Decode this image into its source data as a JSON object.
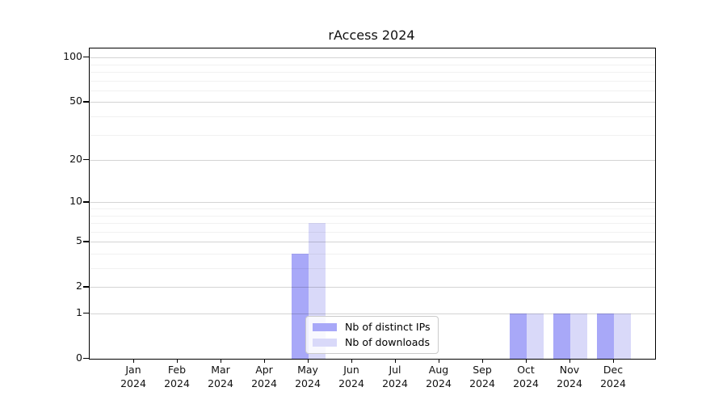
{
  "chart_data": {
    "type": "bar",
    "title": "rAccess 2024",
    "categories": [
      "Jan 2024",
      "Feb 2024",
      "Mar 2024",
      "Apr 2024",
      "May 2024",
      "Jun 2024",
      "Jul 2024",
      "Aug 2024",
      "Sep 2024",
      "Oct 2024",
      "Nov 2024",
      "Dec 2024"
    ],
    "series": [
      {
        "name": "Nb of distinct IPs",
        "color": "#a8a8f8",
        "values": [
          0,
          0,
          0,
          0,
          4,
          0,
          0,
          0,
          0,
          1,
          1,
          1
        ]
      },
      {
        "name": "Nb of downloads",
        "color": "#d9d9f9",
        "values": [
          0,
          0,
          0,
          0,
          7,
          0,
          0,
          0,
          0,
          1,
          1,
          1
        ]
      }
    ],
    "yscale": "log1p",
    "ylim": [
      0,
      115
    ],
    "y_major_ticks": [
      0,
      1,
      2,
      5,
      10,
      20,
      50,
      100
    ],
    "y_minor_ticks": [
      3,
      4,
      6,
      7,
      8,
      9,
      30,
      40,
      60,
      70,
      80,
      90
    ],
    "grid": true,
    "legend_position": "lower center-left"
  }
}
